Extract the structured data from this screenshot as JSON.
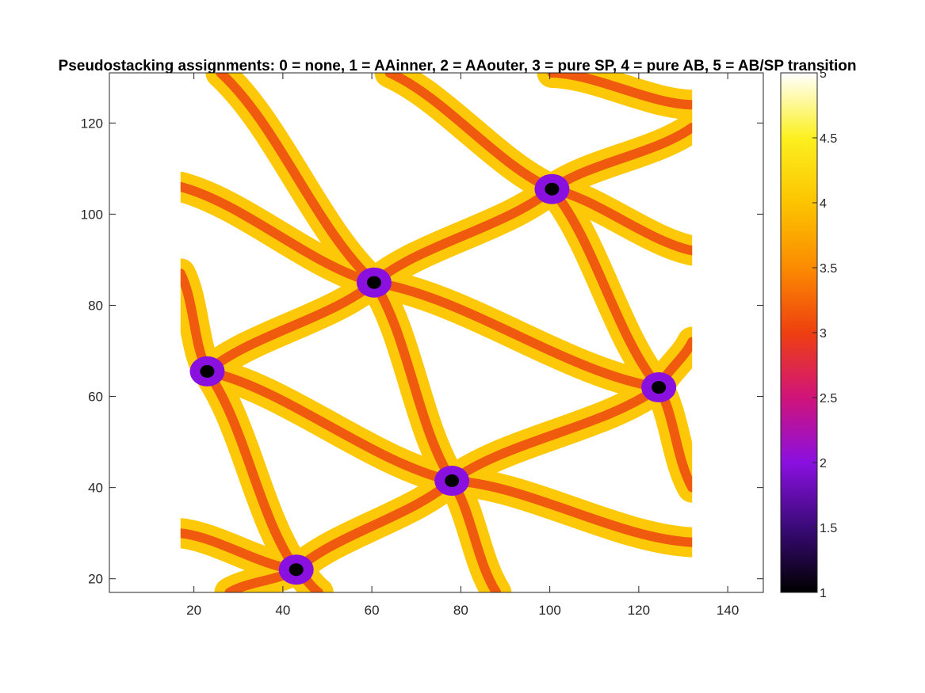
{
  "chart_data": {
    "type": "heatmap",
    "title": "Pseudostacking assignments: 0 = none, 1 = AAinner, 2 = AAouter, 3 = pure SP, 4 = pure AB, 5 = AB/SP transition",
    "xlim": [
      1,
      148
    ],
    "ylim": [
      17,
      131
    ],
    "xticks": [
      "20",
      "40",
      "60",
      "80",
      "100",
      "120",
      "140"
    ],
    "yticks": [
      "20",
      "40",
      "60",
      "80",
      "100",
      "120"
    ],
    "image_extent": {
      "x": [
        17,
        132
      ],
      "y": [
        17,
        131
      ]
    },
    "colorbar": {
      "colormap": "hot-purple",
      "clim": [
        1,
        5
      ],
      "ticks": [
        "1",
        "1.5",
        "2",
        "2.5",
        "3",
        "3.5",
        "4",
        "4.5",
        "5"
      ],
      "stops": [
        {
          "value": 1.0,
          "color": "#000000"
        },
        {
          "value": 1.5,
          "color": "#3a0a78"
        },
        {
          "value": 2.0,
          "color": "#8a10e0"
        },
        {
          "value": 2.5,
          "color": "#d0147a"
        },
        {
          "value": 3.0,
          "color": "#ee4010"
        },
        {
          "value": 3.5,
          "color": "#fb8b00"
        },
        {
          "value": 4.0,
          "color": "#fcc400"
        },
        {
          "value": 4.5,
          "color": "#fcf020"
        },
        {
          "value": 5.0,
          "color": "#ffffff"
        }
      ]
    },
    "category_colors": {
      "AAinner": "#000000",
      "AAouter": "#8a10e0",
      "pure_SP": "#ef5a0f",
      "pure_AB": "#fdc808",
      "AB_SP_transition": "#ffffff"
    },
    "aa_nodes": [
      {
        "x": 23,
        "y": 65.5
      },
      {
        "x": 60.5,
        "y": 85
      },
      {
        "x": 100.5,
        "y": 105.5
      },
      {
        "x": 78,
        "y": 41.5
      },
      {
        "x": 124.5,
        "y": 62
      },
      {
        "x": 43,
        "y": 22
      }
    ],
    "domain_walls": [
      {
        "from": [
          60.5,
          85
        ],
        "to": [
          100.5,
          105.5
        ]
      },
      {
        "from": [
          23,
          65.5
        ],
        "to": [
          60.5,
          85
        ]
      },
      {
        "from": [
          23,
          65.5
        ],
        "to": [
          43,
          22
        ]
      },
      {
        "from": [
          23,
          65.5
        ],
        "to": [
          78,
          41.5
        ]
      },
      {
        "from": [
          60.5,
          85
        ],
        "to": [
          78,
          41.5
        ]
      },
      {
        "from": [
          60.5,
          85
        ],
        "to": [
          124.5,
          62
        ]
      },
      {
        "from": [
          100.5,
          105.5
        ],
        "to": [
          124.5,
          62
        ]
      },
      {
        "from": [
          78,
          41.5
        ],
        "to": [
          124.5,
          62
        ]
      },
      {
        "from": [
          43,
          22
        ],
        "to": [
          78,
          41.5
        ]
      },
      {
        "from": [
          60.5,
          85
        ],
        "to": [
          17,
          106
        ]
      },
      {
        "from": [
          60.5,
          85
        ],
        "to": [
          26,
          131
        ]
      },
      {
        "from": [
          100.5,
          105.5
        ],
        "to": [
          64,
          131
        ]
      },
      {
        "from": [
          100.5,
          105.5
        ],
        "to": [
          132,
          119
        ]
      },
      {
        "from": [
          100.5,
          105.5
        ],
        "to": [
          132,
          92
        ]
      },
      {
        "from": [
          23,
          65.5
        ],
        "to": [
          17,
          87
        ]
      },
      {
        "from": [
          78,
          41.5
        ],
        "to": [
          132,
          28
        ]
      },
      {
        "from": [
          78,
          41.5
        ],
        "to": [
          88,
          17
        ]
      },
      {
        "from": [
          124.5,
          62
        ],
        "to": [
          132,
          72
        ]
      },
      {
        "from": [
          124.5,
          62
        ],
        "to": [
          132,
          40
        ]
      },
      {
        "from": [
          43,
          22
        ],
        "to": [
          17,
          30
        ]
      },
      {
        "from": [
          43,
          22
        ],
        "to": [
          28,
          17
        ]
      },
      {
        "from": [
          43,
          22
        ],
        "to": [
          48,
          17
        ]
      },
      {
        "from": [
          100.5,
          131
        ],
        "to": [
          132,
          124
        ]
      }
    ]
  }
}
